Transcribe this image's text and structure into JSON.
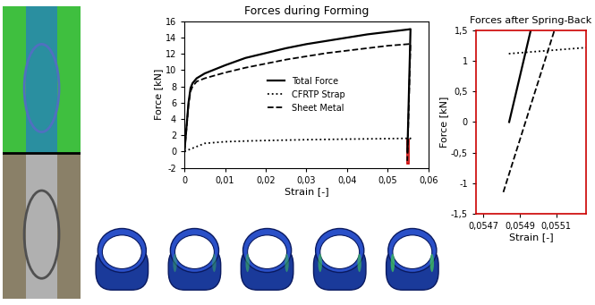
{
  "chart_data": [
    {
      "type": "line",
      "title": "Forces during Forming",
      "x_label": "Strain [-]",
      "y_label": "Force [kN]",
      "xlim": [
        0,
        0.06
      ],
      "ylim": [
        -2,
        16
      ],
      "xticks": [
        0,
        {
          "value": 0.01,
          "label": "0,01"
        },
        {
          "value": 0.02,
          "label": "0,02"
        },
        {
          "value": 0.03,
          "label": "0,03"
        },
        {
          "value": 0.04,
          "label": "0,04"
        },
        {
          "value": 0.05,
          "label": "0,05"
        },
        {
          "value": 0.06,
          "label": "0,06"
        }
      ],
      "yticks": [
        -2,
        0,
        2,
        4,
        6,
        8,
        10,
        12,
        14,
        16
      ],
      "legend": "center",
      "series": [
        {
          "name": "Total Force",
          "color": "#000000",
          "line_style": "solid",
          "x": [
            0,
            0.0005,
            0.001,
            0.0015,
            0.002,
            0.003,
            0.005,
            0.01,
            0.015,
            0.02,
            0.025,
            0.03,
            0.035,
            0.04,
            0.045,
            0.05,
            0.055,
            0.0556,
            0.05484
          ],
          "values": [
            0,
            3,
            6,
            7.8,
            8.4,
            9.0,
            9.6,
            10.6,
            11.5,
            12.1,
            12.7,
            13.2,
            13.6,
            14.0,
            14.4,
            14.7,
            15.0,
            15.05,
            0
          ]
        },
        {
          "name": "CFRTP Strap",
          "color": "#000000",
          "line_style": "dotted",
          "x": [
            0,
            0.005,
            0.01,
            0.016,
            0.02,
            0.03,
            0.04,
            0.05,
            0.0556,
            0.05484
          ],
          "values": [
            0,
            1.0,
            1.2,
            1.3,
            1.35,
            1.45,
            1.52,
            1.58,
            1.62,
            1.12
          ]
        },
        {
          "name": "Sheet Metal",
          "color": "#000000",
          "line_style": "dashed",
          "x": [
            0,
            0.0005,
            0.001,
            0.0015,
            0.002,
            0.003,
            0.005,
            0.01,
            0.015,
            0.02,
            0.025,
            0.03,
            0.035,
            0.04,
            0.045,
            0.05,
            0.055,
            0.0556,
            0.05481
          ],
          "values": [
            0,
            2.8,
            5.8,
            7.4,
            8.0,
            8.6,
            9.0,
            9.7,
            10.3,
            10.8,
            11.3,
            11.7,
            12.1,
            12.4,
            12.7,
            13.0,
            13.2,
            13.25,
            -1.15
          ]
        }
      ]
    },
    {
      "type": "line",
      "title": "Forces after Spring-Back",
      "x_label": "Strain [-]",
      "y_label": "Force [kN]",
      "xlim": [
        0.05466,
        0.055264
      ],
      "ylim": [
        -1.5,
        1.5
      ],
      "xticks": [
        {
          "value": 0.0547,
          "label": "0,0547"
        },
        {
          "value": 0.0549,
          "label": "0,0549"
        },
        {
          "value": 0.0551,
          "label": "0,0551"
        }
      ],
      "yticks": [
        {
          "value": -1.5,
          "label": "-1,5"
        },
        -1,
        {
          "value": -0.5,
          "label": "-0,5"
        },
        0,
        {
          "value": 0.5,
          "label": "0,5"
        },
        1,
        {
          "value": 1.5,
          "label": "1,5"
        }
      ],
      "series": [
        {
          "name": "Total Force",
          "color": "#000000",
          "line_style": "solid",
          "x": [
            0.054842,
            0.05496
          ],
          "values": [
            0,
            1.5
          ]
        },
        {
          "name": "CFRTP Strap",
          "color": "#000000",
          "line_style": "dotted",
          "x": [
            0.05484,
            0.055264
          ],
          "values": [
            1.12,
            1.22
          ]
        },
        {
          "name": "Sheet Metal",
          "color": "#000000",
          "line_style": "dashed",
          "x": [
            0.05481,
            0.05509
          ],
          "values": [
            -1.15,
            1.5
          ]
        }
      ]
    }
  ]
}
